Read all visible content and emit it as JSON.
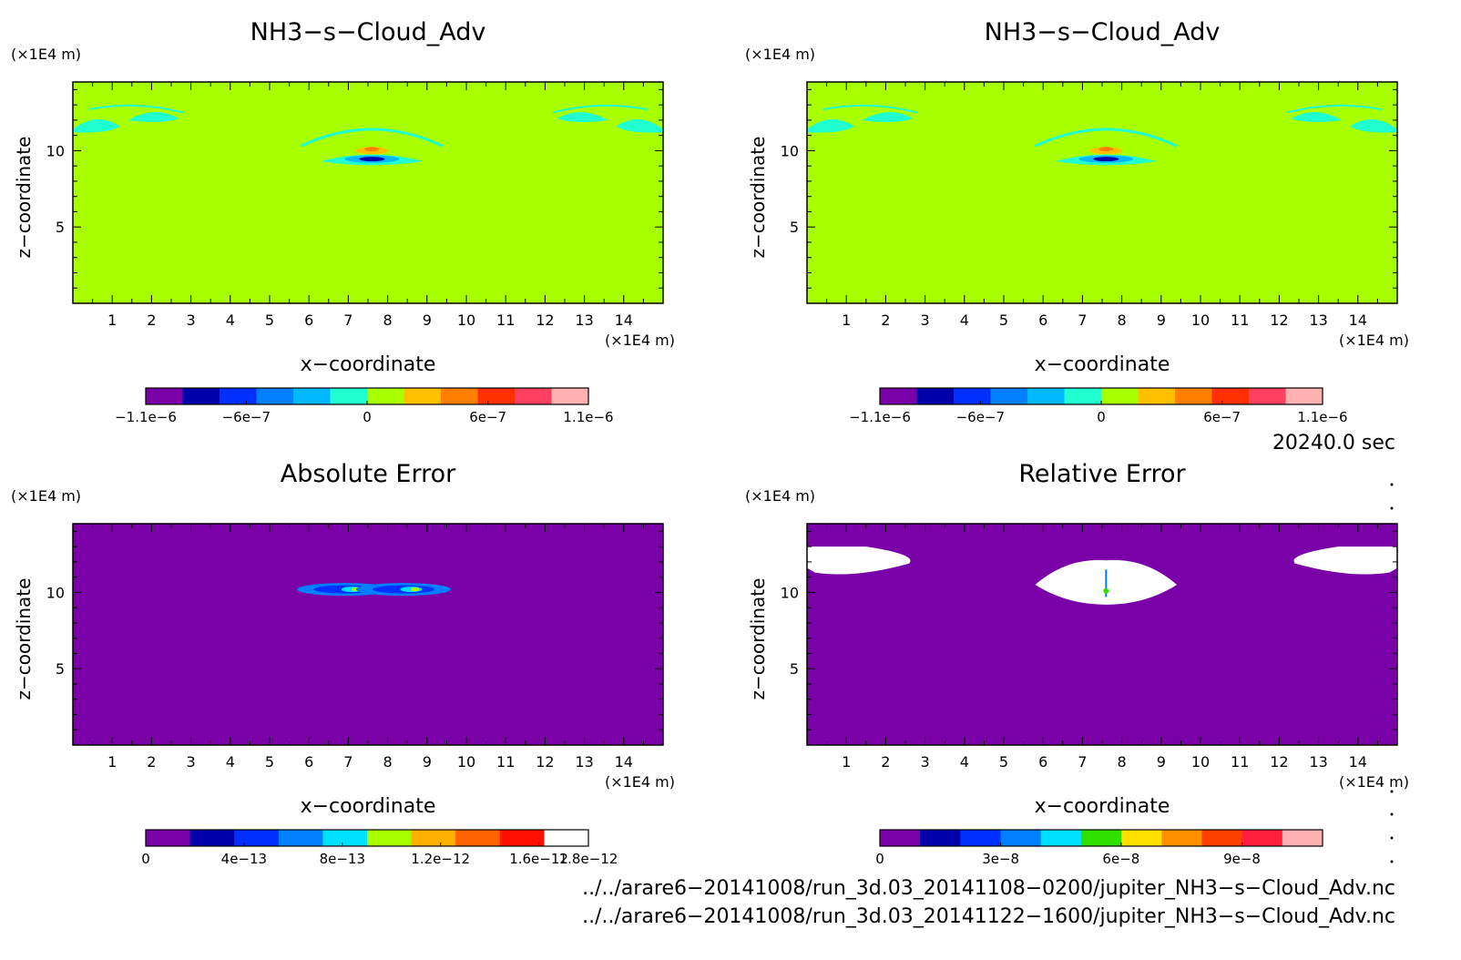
{
  "panels": [
    {
      "title": "NH3−s−Cloud_Adv",
      "xlabel": "x−coordinate",
      "ylabel": "z−coordinate",
      "xunit": "(×1E4 m)",
      "yunit": "(×1E4 m)",
      "background": "#a8ff00",
      "colorbar": {
        "colors": [
          "#7a00a8",
          "#0000aa",
          "#0030ff",
          "#0080ff",
          "#00b8ff",
          "#20ffd0",
          "#a8ff00",
          "#ffc000",
          "#ff8000",
          "#ff3000",
          "#ff4060",
          "#ffb0b0"
        ],
        "labels": [
          {
            "text": "−1.1e−6",
            "pos": 0.0
          },
          {
            "text": "−6e−7",
            "pos": 0.227
          },
          {
            "text": "0",
            "pos": 0.5
          },
          {
            "text": "6e−7",
            "pos": 0.773
          },
          {
            "text": "1.1e−6",
            "pos": 1.0
          }
        ]
      }
    },
    {
      "title": "NH3−s−Cloud_Adv",
      "xlabel": "x−coordinate",
      "ylabel": "z−coordinate",
      "xunit": "(×1E4 m)",
      "yunit": "(×1E4 m)",
      "background": "#a8ff00",
      "colorbar": {
        "colors": [
          "#7a00a8",
          "#0000aa",
          "#0030ff",
          "#0080ff",
          "#00b8ff",
          "#20ffd0",
          "#a8ff00",
          "#ffc000",
          "#ff8000",
          "#ff3000",
          "#ff4060",
          "#ffb0b0"
        ],
        "labels": [
          {
            "text": "−1.1e−6",
            "pos": 0.0
          },
          {
            "text": "−6e−7",
            "pos": 0.227
          },
          {
            "text": "0",
            "pos": 0.5
          },
          {
            "text": "6e−7",
            "pos": 0.773
          },
          {
            "text": "1.1e−6",
            "pos": 1.0
          }
        ]
      }
    },
    {
      "title": "Absolute Error",
      "xlabel": "x−coordinate",
      "ylabel": "z−coordinate",
      "xunit": "(×1E4 m)",
      "yunit": "(×1E4 m)",
      "background": "#7a00a8",
      "colorbar": {
        "colors": [
          "#7a00a8",
          "#0000aa",
          "#0030ff",
          "#0080ff",
          "#00e0ff",
          "#a8ff00",
          "#ffb000",
          "#ff6000",
          "#ff1000",
          "#ffffff"
        ],
        "labels": [
          {
            "text": "0",
            "pos": 0.0
          },
          {
            "text": "4e−13",
            "pos": 0.222
          },
          {
            "text": "8e−13",
            "pos": 0.444
          },
          {
            "text": "1.2e−12",
            "pos": 0.666
          },
          {
            "text": "1.6e−12",
            "pos": 0.888
          },
          {
            "text": "1.8e−12",
            "pos": 1.0
          }
        ]
      }
    },
    {
      "title": "Relative Error",
      "xlabel": "x−coordinate",
      "ylabel": "z−coordinate",
      "xunit": "(×1E4 m)",
      "yunit": "(×1E4 m)",
      "background": "#7a00a8",
      "colorbar": {
        "colors": [
          "#7a00a8",
          "#0000aa",
          "#0030ff",
          "#0080ff",
          "#00e0ff",
          "#30e000",
          "#ffe000",
          "#ff9000",
          "#ff4000",
          "#ff2040",
          "#ffb0b0"
        ],
        "labels": [
          {
            "text": "0",
            "pos": 0.0
          },
          {
            "text": "3e−8",
            "pos": 0.273
          },
          {
            "text": "6e−8",
            "pos": 0.545
          },
          {
            "text": "9e−8",
            "pos": 0.818
          }
        ]
      }
    }
  ],
  "time_label": "20240.0 sec",
  "file_paths": [
    "../../arare6−20141008/run_3d.03_20141108−0200/jupiter_NH3−s−Cloud_Adv.nc",
    "../../arare6−20141008/run_3d.03_20141122−1600/jupiter_NH3−s−Cloud_Adv.nc"
  ],
  "chart_data": [
    {
      "type": "heatmap",
      "title": "NH3−s−Cloud_Adv",
      "xlabel": "x−coordinate",
      "ylabel": "z−coordinate",
      "xunit": "(×1E4 m)",
      "yunit": "(×1E4 m)",
      "xlim": [
        0,
        15
      ],
      "ylim": [
        0,
        14.5
      ],
      "xticks": [
        1,
        2,
        3,
        4,
        5,
        6,
        7,
        8,
        9,
        10,
        11,
        12,
        13,
        14
      ],
      "yticks": [
        5,
        10
      ],
      "colorbar_ticks": [
        "−1.1e−6",
        "−6e−7",
        "0",
        "6e−7",
        "1.1e−6"
      ],
      "features": [
        {
          "kind": "negative-patch",
          "x": 0.7,
          "z": 11.8
        },
        {
          "kind": "negative-patch",
          "x": 1.8,
          "z": 12.3
        },
        {
          "kind": "negative-patch",
          "x": 14.3,
          "z": 11.8
        },
        {
          "kind": "negative-patch",
          "x": 13.3,
          "z": 12.3
        },
        {
          "kind": "dipole",
          "x": 7.6,
          "z": 10.1
        }
      ]
    },
    {
      "type": "heatmap",
      "title": "NH3−s−Cloud_Adv",
      "xlabel": "x−coordinate",
      "ylabel": "z−coordinate",
      "xunit": "(×1E4 m)",
      "yunit": "(×1E4 m)",
      "xlim": [
        0,
        15
      ],
      "ylim": [
        0,
        14.5
      ],
      "xticks": [
        1,
        2,
        3,
        4,
        5,
        6,
        7,
        8,
        9,
        10,
        11,
        12,
        13,
        14
      ],
      "yticks": [
        5,
        10
      ],
      "colorbar_ticks": [
        "−1.1e−6",
        "−6e−7",
        "0",
        "6e−7",
        "1.1e−6"
      ],
      "features": [
        {
          "kind": "negative-patch",
          "x": 0.7,
          "z": 11.8
        },
        {
          "kind": "negative-patch",
          "x": 1.8,
          "z": 12.3
        },
        {
          "kind": "negative-patch",
          "x": 14.3,
          "z": 11.8
        },
        {
          "kind": "negative-patch",
          "x": 13.3,
          "z": 12.3
        },
        {
          "kind": "dipole",
          "x": 7.6,
          "z": 10.1
        }
      ]
    },
    {
      "type": "heatmap",
      "title": "Absolute Error",
      "xlabel": "x−coordinate",
      "ylabel": "z−coordinate",
      "xunit": "(×1E4 m)",
      "yunit": "(×1E4 m)",
      "xlim": [
        0,
        15
      ],
      "ylim": [
        0,
        14.5
      ],
      "xticks": [
        1,
        2,
        3,
        4,
        5,
        6,
        7,
        8,
        9,
        10,
        11,
        12,
        13,
        14
      ],
      "yticks": [
        5,
        10
      ],
      "colorbar_ticks": [
        "0",
        "4e−13",
        "8e−13",
        "1.2e−12",
        "1.6e−12",
        "1.8e−12"
      ],
      "features": [
        {
          "kind": "error-lobe",
          "x": 6.9,
          "z": 10.2
        },
        {
          "kind": "error-lobe",
          "x": 8.4,
          "z": 10.2
        }
      ]
    },
    {
      "type": "heatmap",
      "title": "Relative Error",
      "xlabel": "x−coordinate",
      "ylabel": "z−coordinate",
      "xunit": "(×1E4 m)",
      "yunit": "(×1E4 m)",
      "xlim": [
        0,
        15
      ],
      "ylim": [
        0,
        14.5
      ],
      "xticks": [
        1,
        2,
        3,
        4,
        5,
        6,
        7,
        8,
        9,
        10,
        11,
        12,
        13,
        14
      ],
      "yticks": [
        5,
        10
      ],
      "colorbar_ticks": [
        "0",
        "3e−8",
        "6e−8",
        "9e−8"
      ],
      "features": [
        {
          "kind": "undefined-region",
          "x": 1.2,
          "z": 12.2
        },
        {
          "kind": "undefined-region",
          "x": 7.6,
          "z": 10.6
        },
        {
          "kind": "undefined-region",
          "x": 14.0,
          "z": 12.2
        }
      ]
    }
  ]
}
